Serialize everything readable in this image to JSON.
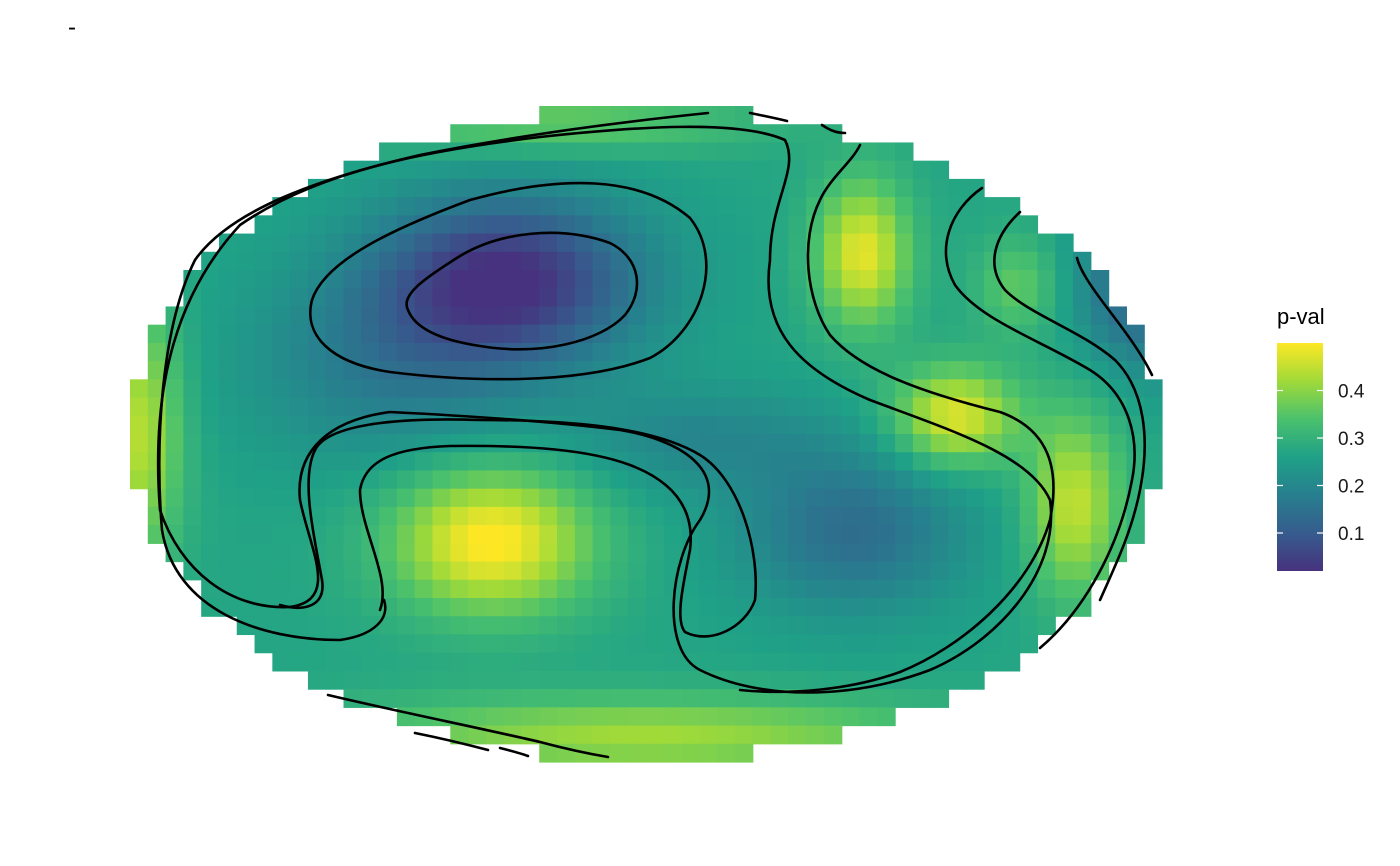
{
  "title": "-",
  "chart_data": {
    "type": "heatmap",
    "title": "-",
    "projection": "ellipse",
    "fill_variable": "p-val",
    "grid_columns": 58,
    "grid_rows": 36,
    "value_range": [
      0.02,
      0.5
    ],
    "field_model": {
      "base": 0.27,
      "bumps": [
        {
          "cx": -0.27,
          "cy": -0.47,
          "sx": 0.26,
          "sy": 0.26,
          "amp": -0.25
        },
        {
          "cx": -0.5,
          "cy": -0.2,
          "sx": 0.28,
          "sy": 0.3,
          "amp": -0.09
        },
        {
          "cx": 0.4,
          "cy": 0.3,
          "sx": 0.22,
          "sy": 0.25,
          "amp": -0.13
        },
        {
          "cx": 0.1,
          "cy": 0.02,
          "sx": 0.25,
          "sy": 0.16,
          "amp": -0.07
        },
        {
          "cx": -0.3,
          "cy": 0.33,
          "sx": 0.19,
          "sy": 0.22,
          "amp": 0.24
        },
        {
          "cx": 0.0,
          "cy": 0.93,
          "sx": 0.6,
          "sy": 0.12,
          "amp": 0.15
        },
        {
          "cx": 0.42,
          "cy": -0.55,
          "sx": 0.09,
          "sy": 0.22,
          "amp": 0.21
        },
        {
          "cx": 0.6,
          "cy": -0.05,
          "sx": 0.12,
          "sy": 0.15,
          "amp": 0.21
        },
        {
          "cx": 0.83,
          "cy": 0.22,
          "sx": 0.09,
          "sy": 0.28,
          "amp": 0.18
        },
        {
          "cx": 0.72,
          "cy": -0.45,
          "sx": 0.08,
          "sy": 0.15,
          "amp": 0.09
        },
        {
          "cx": -0.98,
          "cy": 0.0,
          "sx": 0.08,
          "sy": 0.4,
          "amp": 0.17
        },
        {
          "cx": 0.96,
          "cy": -0.45,
          "sx": 0.12,
          "sy": 0.25,
          "amp": -0.16
        },
        {
          "cx": -0.2,
          "cy": -0.95,
          "sx": 0.4,
          "sy": 0.09,
          "amp": 0.1
        }
      ]
    },
    "legend": {
      "title": "p-val",
      "position": "right",
      "ticks": [
        0.1,
        0.2,
        0.3,
        0.4
      ],
      "tick_labels": [
        "0.1",
        "0.2",
        "0.3",
        "0.4"
      ]
    },
    "colormap": "viridis",
    "colormap_stops": [
      "#46327e",
      "#365c8d",
      "#277f8e",
      "#1fa187",
      "#4ac16d",
      "#a0da39",
      "#fde725"
    ],
    "contour_lines": "black",
    "axes": "none",
    "grid": false
  }
}
